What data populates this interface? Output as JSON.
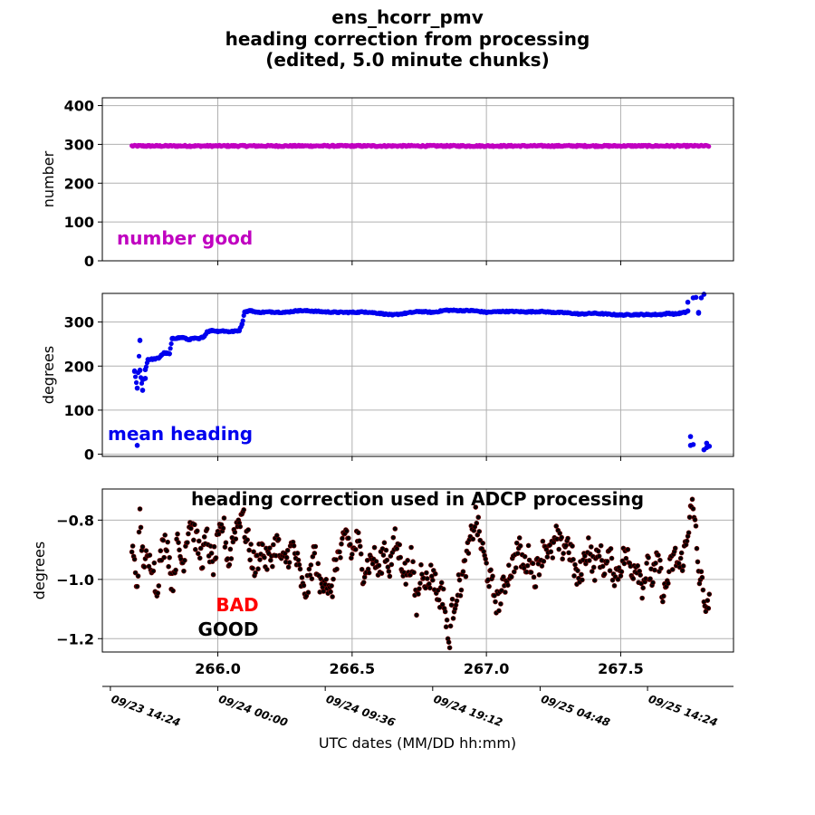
{
  "title_lines": [
    "ens_hcorr_pmv",
    "heading correction from processing",
    "(edited, 5.0 minute chunks)"
  ],
  "colors": {
    "number": "#c000c0",
    "heading": "#0000ee",
    "hcorr": "#000000",
    "hcorr_edge": "#7a0000",
    "bad": "#ff0000",
    "good": "#000000",
    "grid": "#b0b0b0"
  },
  "chart_data": [
    {
      "type": "scatter",
      "name": "number-panel",
      "ylabel": "number",
      "annotation": "number good",
      "ylim": [
        0,
        420
      ],
      "yticks": [
        0,
        100,
        200,
        300,
        400
      ],
      "xlim": [
        265.57,
        267.92
      ],
      "xticks": [
        266.0,
        266.5,
        267.0,
        267.5
      ],
      "grid": true,
      "x_range": [
        265.68,
        267.83
      ],
      "spacing_days": 0.00347,
      "value": 296,
      "note_points": "one point every 5 minutes, nearly constant ~296"
    },
    {
      "type": "scatter",
      "name": "heading-panel",
      "ylabel": "degrees",
      "annotation": "mean heading",
      "ylim": [
        -5,
        365
      ],
      "yticks": [
        0,
        100,
        200,
        300
      ],
      "xlim": [
        265.57,
        267.92
      ],
      "xticks": [
        266.0,
        266.5,
        267.0,
        267.5
      ],
      "grid": true,
      "points": [
        [
          265.69,
          188
        ],
        [
          265.7,
          150
        ],
        [
          265.7,
          20
        ],
        [
          265.71,
          258
        ],
        [
          265.71,
          190
        ],
        [
          265.72,
          145
        ],
        [
          265.72,
          170
        ],
        [
          265.73,
          172
        ],
        [
          265.73,
          192
        ],
        [
          265.74,
          215
        ],
        [
          265.76,
          216
        ],
        [
          265.78,
          218
        ],
        [
          265.79,
          225
        ],
        [
          265.8,
          230
        ],
        [
          265.82,
          228
        ],
        [
          265.83,
          262
        ],
        [
          265.85,
          264
        ],
        [
          265.87,
          265
        ],
        [
          265.89,
          260
        ],
        [
          265.91,
          263
        ],
        [
          265.93,
          262
        ],
        [
          265.95,
          268
        ],
        [
          265.96,
          278
        ],
        [
          265.98,
          281
        ],
        [
          266.0,
          279
        ],
        [
          266.02,
          280
        ],
        [
          266.04,
          278
        ],
        [
          266.06,
          279
        ],
        [
          266.08,
          281
        ],
        [
          266.09,
          295
        ],
        [
          266.1,
          323
        ],
        [
          266.12,
          326
        ],
        [
          266.15,
          322
        ],
        [
          266.2,
          323
        ],
        [
          266.25,
          322
        ],
        [
          266.3,
          326
        ],
        [
          266.35,
          325
        ],
        [
          266.4,
          323
        ],
        [
          266.45,
          322
        ],
        [
          266.5,
          322
        ],
        [
          266.55,
          323
        ],
        [
          266.6,
          320
        ],
        [
          266.65,
          316
        ],
        [
          266.7,
          320
        ],
        [
          266.75,
          324
        ],
        [
          266.8,
          322
        ],
        [
          266.85,
          327
        ],
        [
          266.9,
          326
        ],
        [
          266.95,
          326
        ],
        [
          267.0,
          322
        ],
        [
          267.05,
          324
        ],
        [
          267.1,
          324
        ],
        [
          267.15,
          323
        ],
        [
          267.2,
          324
        ],
        [
          267.25,
          322
        ],
        [
          267.3,
          321
        ],
        [
          267.35,
          318
        ],
        [
          267.4,
          320
        ],
        [
          267.45,
          318
        ],
        [
          267.5,
          316
        ],
        [
          267.55,
          317
        ],
        [
          267.6,
          317
        ],
        [
          267.65,
          317
        ],
        [
          267.68,
          320
        ],
        [
          267.7,
          318
        ],
        [
          267.72,
          320
        ],
        [
          267.74,
          322
        ],
        [
          267.75,
          325
        ],
        [
          267.75,
          345
        ],
        [
          267.76,
          40
        ],
        [
          267.76,
          20
        ],
        [
          267.77,
          22
        ],
        [
          267.77,
          355
        ],
        [
          267.78,
          356
        ],
        [
          267.79,
          320
        ],
        [
          267.79,
          322
        ],
        [
          267.8,
          355
        ],
        [
          267.81,
          10
        ],
        [
          267.81,
          363
        ],
        [
          267.82,
          25
        ],
        [
          267.82,
          15
        ],
        [
          267.83,
          18
        ]
      ]
    },
    {
      "type": "scatter",
      "name": "correction-panel",
      "ylabel": "degrees",
      "title": "heading correction used in ADCP processing",
      "ylim": [
        -1.245,
        -0.695
      ],
      "yticks": [
        -1.2,
        -1.0,
        -0.8
      ],
      "ytick_labels": [
        "−1.2",
        "−1.0",
        "−0.8"
      ],
      "xlim": [
        265.57,
        267.92
      ],
      "xticks": [
        266.0,
        266.5,
        267.0,
        267.5
      ],
      "xtick_labels": [
        "266.0",
        "266.5",
        "267.0",
        "267.5"
      ],
      "grid": true,
      "legend_bad": "BAD",
      "legend_good": "GOOD",
      "x_range": [
        265.68,
        267.83
      ],
      "spacing_days": 0.00347,
      "points": [
        [
          265.68,
          -0.89
        ],
        [
          265.7,
          -1.02
        ],
        [
          265.71,
          -0.8
        ],
        [
          265.72,
          -0.92
        ],
        [
          265.74,
          -0.95
        ],
        [
          265.76,
          -0.93
        ],
        [
          265.77,
          -1.05
        ],
        [
          265.79,
          -0.91
        ],
        [
          265.81,
          -0.86
        ],
        [
          265.83,
          -1.02
        ],
        [
          265.85,
          -0.88
        ],
        [
          265.87,
          -0.95
        ],
        [
          265.89,
          -0.82
        ],
        [
          265.9,
          -0.8
        ],
        [
          265.92,
          -0.87
        ],
        [
          265.94,
          -0.93
        ],
        [
          265.96,
          -0.86
        ],
        [
          265.98,
          -0.96
        ],
        [
          266.0,
          -0.88
        ],
        [
          266.02,
          -0.81
        ],
        [
          266.04,
          -0.95
        ],
        [
          266.06,
          -0.84
        ],
        [
          266.08,
          -0.8
        ],
        [
          266.09,
          -0.76
        ],
        [
          266.1,
          -0.83
        ],
        [
          266.12,
          -0.9
        ],
        [
          266.14,
          -0.97
        ],
        [
          266.16,
          -0.88
        ],
        [
          266.18,
          -0.94
        ],
        [
          266.2,
          -0.92
        ],
        [
          266.22,
          -0.87
        ],
        [
          266.24,
          -0.95
        ],
        [
          266.26,
          -0.92
        ],
        [
          266.28,
          -0.89
        ],
        [
          266.3,
          -0.96
        ],
        [
          266.32,
          -1.05
        ],
        [
          266.34,
          -1.01
        ],
        [
          266.36,
          -0.9
        ],
        [
          266.38,
          -1.03
        ],
        [
          266.4,
          -0.98
        ],
        [
          266.42,
          -1.07
        ],
        [
          266.44,
          -0.93
        ],
        [
          266.46,
          -0.91
        ],
        [
          266.48,
          -0.84
        ],
        [
          266.5,
          -0.92
        ],
        [
          266.52,
          -0.86
        ],
        [
          266.54,
          -0.97
        ],
        [
          266.56,
          -0.95
        ],
        [
          266.58,
          -0.92
        ],
        [
          266.6,
          -0.98
        ],
        [
          266.62,
          -0.89
        ],
        [
          266.64,
          -0.96
        ],
        [
          266.66,
          -0.87
        ],
        [
          266.68,
          -0.92
        ],
        [
          266.7,
          -0.99
        ],
        [
          266.72,
          -0.93
        ],
        [
          266.74,
          -1.09
        ],
        [
          266.76,
          -0.95
        ],
        [
          266.78,
          -1.02
        ],
        [
          266.8,
          -0.97
        ],
        [
          266.82,
          -1.06
        ],
        [
          266.84,
          -1.04
        ],
        [
          266.85,
          -1.15
        ],
        [
          266.86,
          -1.22
        ],
        [
          266.87,
          -1.12
        ],
        [
          266.89,
          -1.04
        ],
        [
          266.91,
          -1.0
        ],
        [
          266.93,
          -0.92
        ],
        [
          266.95,
          -0.83
        ],
        [
          266.96,
          -0.79
        ],
        [
          266.98,
          -0.88
        ],
        [
          267.0,
          -0.96
        ],
        [
          267.02,
          -1.02
        ],
        [
          267.04,
          -1.08
        ],
        [
          267.06,
          -1.04
        ],
        [
          267.08,
          -0.98
        ],
        [
          267.1,
          -0.95
        ],
        [
          267.12,
          -0.89
        ],
        [
          267.14,
          -0.96
        ],
        [
          267.16,
          -0.92
        ],
        [
          267.18,
          -0.99
        ],
        [
          267.2,
          -0.93
        ],
        [
          267.22,
          -0.88
        ],
        [
          267.24,
          -0.92
        ],
        [
          267.26,
          -0.86
        ],
        [
          267.28,
          -0.9
        ],
        [
          267.3,
          -0.87
        ],
        [
          267.32,
          -0.93
        ],
        [
          267.34,
          -1.01
        ],
        [
          267.36,
          -0.95
        ],
        [
          267.38,
          -0.88
        ],
        [
          267.4,
          -0.97
        ],
        [
          267.42,
          -0.91
        ],
        [
          267.44,
          -0.96
        ],
        [
          267.46,
          -0.93
        ],
        [
          267.48,
          -0.99
        ],
        [
          267.5,
          -0.95
        ],
        [
          267.52,
          -0.91
        ],
        [
          267.54,
          -0.97
        ],
        [
          267.56,
          -0.94
        ],
        [
          267.58,
          -1.02
        ],
        [
          267.6,
          -0.96
        ],
        [
          267.62,
          -1.0
        ],
        [
          267.64,
          -0.93
        ],
        [
          267.66,
          -1.06
        ],
        [
          267.68,
          -0.98
        ],
        [
          267.7,
          -0.92
        ],
        [
          267.72,
          -0.96
        ],
        [
          267.74,
          -0.9
        ],
        [
          267.75,
          -0.86
        ],
        [
          267.76,
          -0.72
        ],
        [
          267.77,
          -0.78
        ],
        [
          267.78,
          -0.85
        ],
        [
          267.79,
          -0.98
        ],
        [
          267.8,
          -1.01
        ],
        [
          267.81,
          -1.04
        ],
        [
          267.82,
          -1.13
        ],
        [
          267.83,
          -1.05
        ]
      ]
    }
  ],
  "date_axis": {
    "xlabel": "UTC dates (MM/DD hh:mm)",
    "xlim": [
      265.57,
      267.92
    ],
    "ticks": [
      {
        "x": 265.6,
        "label": "09/23 14:24"
      },
      {
        "x": 266.0,
        "label": "09/24 00:00"
      },
      {
        "x": 266.4,
        "label": "09/24 09:36"
      },
      {
        "x": 266.8,
        "label": "09/24 19:12"
      },
      {
        "x": 267.2,
        "label": "09/25 04:48"
      },
      {
        "x": 267.6,
        "label": "09/25 14:24"
      }
    ]
  }
}
